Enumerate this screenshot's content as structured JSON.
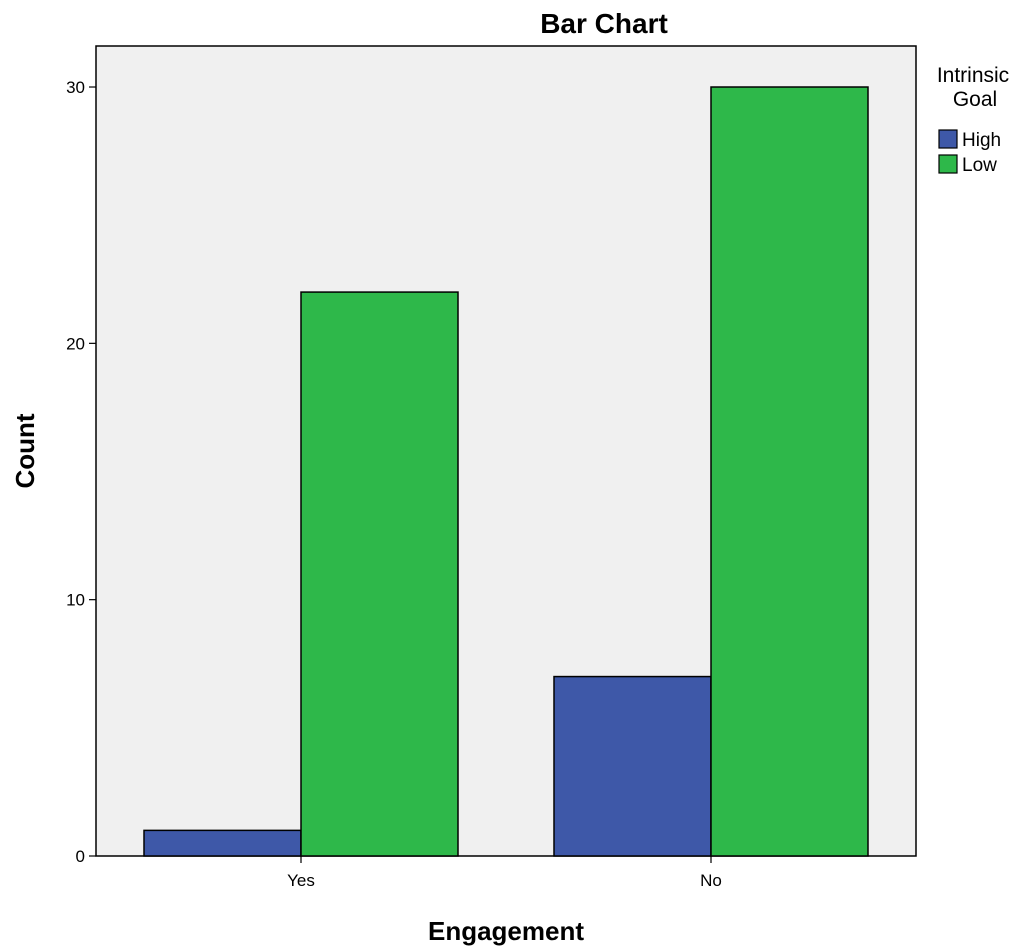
{
  "chart_data": {
    "type": "bar",
    "title": "Bar Chart",
    "xlabel": "Engagement",
    "ylabel": "Count",
    "categories": [
      "Yes",
      "No"
    ],
    "series": [
      {
        "name": "High",
        "values": [
          1,
          7
        ],
        "color": "#3e58a8"
      },
      {
        "name": "Low",
        "values": [
          22,
          30
        ],
        "color": "#2eb84a"
      }
    ],
    "ylim": [
      0,
      31.6
    ],
    "yticks": [
      0,
      10,
      20,
      30
    ],
    "legend": {
      "title_line1": "Intrinsic",
      "title_line2": "Goal",
      "placement": "top-right"
    },
    "grid": false,
    "plot_background": "#f0f0f0",
    "bar_outline": "#000000"
  }
}
